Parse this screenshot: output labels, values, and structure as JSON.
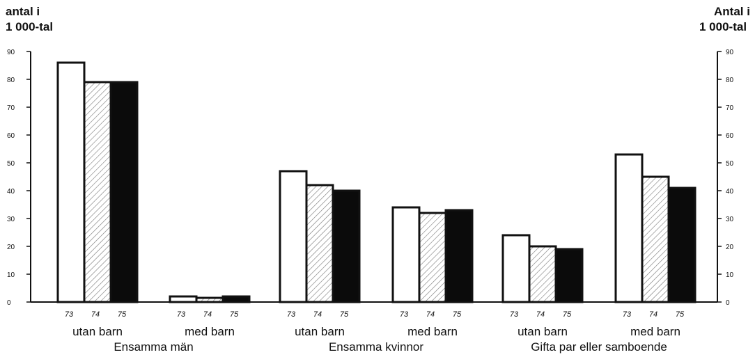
{
  "chart_data": {
    "type": "bar",
    "left_axis_label": [
      "antal i",
      "1 000-tal"
    ],
    "right_axis_label": [
      "Antal i",
      "1 000-tal"
    ],
    "ylim": [
      0,
      90
    ],
    "yticks": [
      "0",
      "10",
      "20",
      "30",
      "40",
      "50",
      "60",
      "70",
      "80",
      "90"
    ],
    "grid": false,
    "year_labels": [
      "73",
      "74",
      "75"
    ],
    "series": [
      {
        "year": "73",
        "fill": "white"
      },
      {
        "year": "74",
        "fill": "hatched"
      },
      {
        "year": "75",
        "fill": "black"
      }
    ],
    "categories": [
      {
        "label": "utan barn",
        "values": [
          86,
          79,
          79
        ]
      },
      {
        "label": "med barn",
        "values": [
          2,
          1.5,
          2
        ]
      },
      {
        "label": "utan barn",
        "values": [
          47,
          42,
          40
        ]
      },
      {
        "label": "med barn",
        "values": [
          34,
          32,
          33
        ]
      },
      {
        "label": "utan barn",
        "values": [
          24,
          20,
          19
        ]
      },
      {
        "label": "med barn",
        "values": [
          53,
          45,
          41
        ]
      }
    ],
    "groups": [
      "Ensamma män",
      "Ensamma kvinnor",
      "Gifta par eller samboende"
    ]
  }
}
